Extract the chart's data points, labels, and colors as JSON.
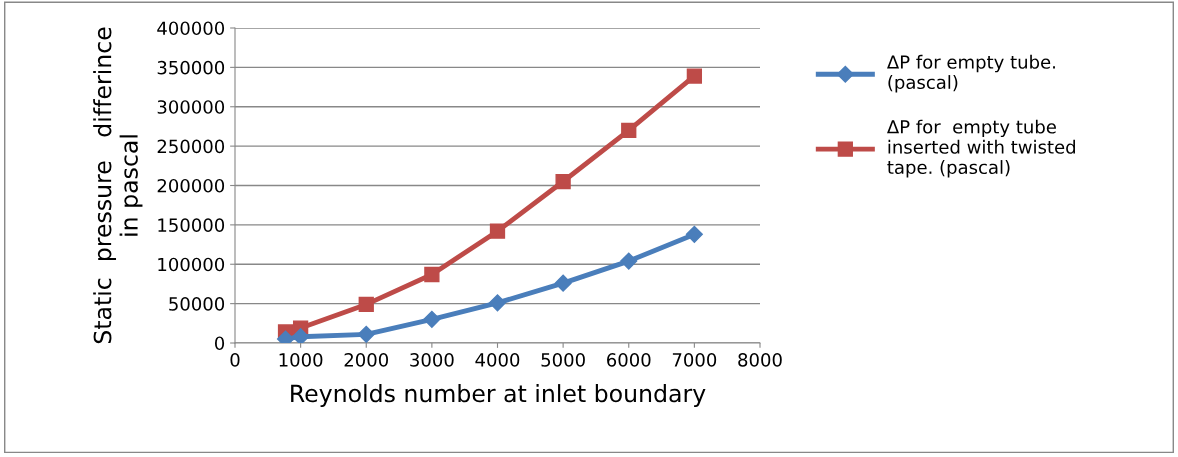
{
  "chart_data": {
    "type": "line",
    "xlabel": "Reynolds number at inlet boundary",
    "ylabel": "Static  pressure   differince\nin pascal",
    "xlim": [
      0,
      8000
    ],
    "xticks": [
      0,
      1000,
      2000,
      3000,
      4000,
      5000,
      6000,
      7000,
      8000
    ],
    "ylim": [
      0,
      400000
    ],
    "yticks": [
      0,
      50000,
      100000,
      150000,
      200000,
      250000,
      300000,
      350000,
      400000
    ],
    "grid": "y",
    "legend": "right",
    "series": [
      {
        "name": "ΔP for empty tube.\n(pascal)",
        "color": "#4a7ebb",
        "marker": "diamond",
        "x": [
          770,
          1000,
          2000,
          3000,
          4000,
          5000,
          6000,
          7000
        ],
        "values": [
          5000,
          8000,
          11000,
          30000,
          51000,
          76000,
          104000,
          138000
        ]
      },
      {
        "name": "ΔP for  empty tube\ninserted with twisted\ntape. (pascal)",
        "color": "#be4b48",
        "marker": "square",
        "x": [
          770,
          1000,
          2000,
          3000,
          4000,
          5000,
          6000,
          7000
        ],
        "values": [
          14000,
          19000,
          49000,
          87000,
          142000,
          205000,
          270000,
          339000
        ]
      }
    ]
  }
}
